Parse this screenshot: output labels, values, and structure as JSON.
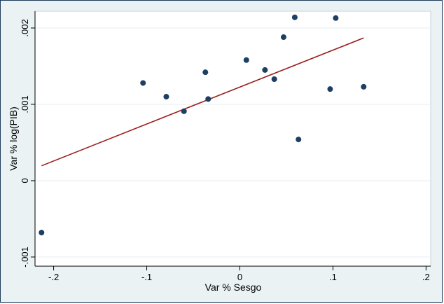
{
  "chart_data": {
    "type": "scatter",
    "title": "",
    "xlabel": "Var % Sesgo",
    "ylabel": "Var % log(PIB)",
    "xlim": [
      -0.22,
      0.205
    ],
    "ylim": [
      -0.00112,
      0.00222
    ],
    "grid": true,
    "x_ticks": [
      -0.2,
      -0.1,
      0,
      0.1,
      0.2
    ],
    "x_tick_labels": [
      "-.2",
      "-.1",
      "0",
      ".1",
      ".2"
    ],
    "y_ticks": [
      -0.001,
      0,
      0.001,
      0.002
    ],
    "y_tick_labels": [
      "-.001",
      "0",
      ".001",
      ".002"
    ],
    "colors": {
      "points": "#1c3f62",
      "fit_line": "#9b1c1c",
      "plot_bg": "#ffffff",
      "outer_bg": "#eaf2f3",
      "grid": "#e6ecef"
    },
    "points": [
      {
        "x": -0.213,
        "y": -0.00068
      },
      {
        "x": -0.104,
        "y": 0.00128
      },
      {
        "x": -0.079,
        "y": 0.0011
      },
      {
        "x": -0.06,
        "y": 0.00091
      },
      {
        "x": -0.037,
        "y": 0.00142
      },
      {
        "x": -0.034,
        "y": 0.00107
      },
      {
        "x": 0.007,
        "y": 0.00158
      },
      {
        "x": 0.027,
        "y": 0.00145
      },
      {
        "x": 0.037,
        "y": 0.00133
      },
      {
        "x": 0.047,
        "y": 0.00188
      },
      {
        "x": 0.059,
        "y": 0.00214
      },
      {
        "x": 0.063,
        "y": 0.00054
      },
      {
        "x": 0.097,
        "y": 0.0012
      },
      {
        "x": 0.103,
        "y": 0.00213
      },
      {
        "x": 0.133,
        "y": 0.00123
      }
    ],
    "fit_line": {
      "x": [
        -0.213,
        0.133
      ],
      "y": [
        0.000195,
        0.00187
      ]
    }
  }
}
